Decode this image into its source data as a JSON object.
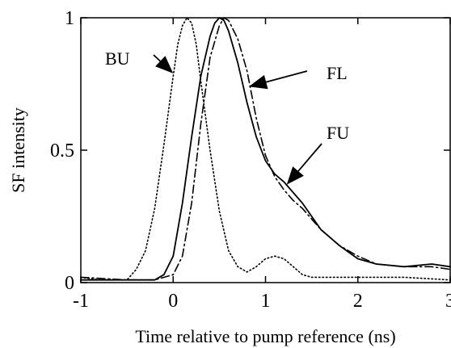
{
  "chart_data": {
    "type": "line",
    "xlabel": "Time relative to pump reference (ns)",
    "ylabel": "SF intensity",
    "xlim": [
      -1,
      3
    ],
    "ylim": [
      0,
      1
    ],
    "x_ticks": [
      -1,
      0,
      1,
      2,
      3
    ],
    "x_tick_labels": [
      "-1",
      "0",
      "1",
      "2",
      "3"
    ],
    "y_ticks": [
      0,
      0.5,
      1
    ],
    "y_tick_labels": [
      "0",
      "0.5",
      "1"
    ],
    "grid": false,
    "legend": "none",
    "series": [
      {
        "name": "BU",
        "style": "dotted",
        "points": [
          [
            -1,
            0.02
          ],
          [
            -0.8,
            0.01
          ],
          [
            -0.5,
            0.01
          ],
          [
            -0.4,
            0.05
          ],
          [
            -0.3,
            0.12
          ],
          [
            -0.2,
            0.28
          ],
          [
            -0.1,
            0.52
          ],
          [
            0,
            0.78
          ],
          [
            0.05,
            0.9
          ],
          [
            0.1,
            0.97
          ],
          [
            0.15,
            1.0
          ],
          [
            0.2,
            0.98
          ],
          [
            0.25,
            0.9
          ],
          [
            0.3,
            0.76
          ],
          [
            0.4,
            0.5
          ],
          [
            0.5,
            0.27
          ],
          [
            0.6,
            0.12
          ],
          [
            0.7,
            0.06
          ],
          [
            0.8,
            0.04
          ],
          [
            0.9,
            0.06
          ],
          [
            1.0,
            0.09
          ],
          [
            1.1,
            0.1
          ],
          [
            1.2,
            0.09
          ],
          [
            1.3,
            0.06
          ],
          [
            1.4,
            0.03
          ],
          [
            1.5,
            0.02
          ],
          [
            2.0,
            0.02
          ],
          [
            2.5,
            0.02
          ],
          [
            3.0,
            0.01
          ]
        ]
      },
      {
        "name": "FL",
        "style": "dashdot",
        "points": [
          [
            -1,
            0.02
          ],
          [
            -0.5,
            0.01
          ],
          [
            -0.2,
            0.01
          ],
          [
            0,
            0.03
          ],
          [
            0.1,
            0.1
          ],
          [
            0.2,
            0.3
          ],
          [
            0.3,
            0.6
          ],
          [
            0.4,
            0.85
          ],
          [
            0.5,
            0.97
          ],
          [
            0.55,
            1.0
          ],
          [
            0.6,
            0.99
          ],
          [
            0.7,
            0.92
          ],
          [
            0.8,
            0.8
          ],
          [
            0.9,
            0.62
          ],
          [
            1.0,
            0.48
          ],
          [
            1.1,
            0.4
          ],
          [
            1.2,
            0.35
          ],
          [
            1.3,
            0.31
          ],
          [
            1.4,
            0.28
          ],
          [
            1.5,
            0.24
          ],
          [
            1.6,
            0.2
          ],
          [
            1.8,
            0.14
          ],
          [
            2.0,
            0.1
          ],
          [
            2.2,
            0.07
          ],
          [
            2.5,
            0.06
          ],
          [
            2.8,
            0.06
          ],
          [
            3.0,
            0.05
          ]
        ]
      },
      {
        "name": "FU",
        "style": "solid",
        "points": [
          [
            -1,
            0.01
          ],
          [
            -0.5,
            0.01
          ],
          [
            -0.2,
            0.01
          ],
          [
            -0.1,
            0.03
          ],
          [
            0,
            0.1
          ],
          [
            0.1,
            0.3
          ],
          [
            0.2,
            0.55
          ],
          [
            0.3,
            0.78
          ],
          [
            0.4,
            0.93
          ],
          [
            0.45,
            0.98
          ],
          [
            0.5,
            1.0
          ],
          [
            0.55,
            0.99
          ],
          [
            0.6,
            0.95
          ],
          [
            0.7,
            0.83
          ],
          [
            0.8,
            0.68
          ],
          [
            0.9,
            0.55
          ],
          [
            1.0,
            0.46
          ],
          [
            1.1,
            0.41
          ],
          [
            1.2,
            0.38
          ],
          [
            1.3,
            0.34
          ],
          [
            1.4,
            0.3
          ],
          [
            1.5,
            0.25
          ],
          [
            1.6,
            0.2
          ],
          [
            1.8,
            0.14
          ],
          [
            2.0,
            0.09
          ],
          [
            2.2,
            0.07
          ],
          [
            2.5,
            0.06
          ],
          [
            2.8,
            0.07
          ],
          [
            3.0,
            0.06
          ]
        ]
      }
    ],
    "annotations": [
      {
        "text": "BU",
        "target_series": "BU",
        "target": [
          0.0,
          0.79
        ]
      },
      {
        "text": "FL",
        "target_series": "FL",
        "target": [
          0.82,
          0.74
        ]
      },
      {
        "text": "FU",
        "target_series": "FU",
        "target": [
          1.23,
          0.37
        ]
      }
    ]
  }
}
